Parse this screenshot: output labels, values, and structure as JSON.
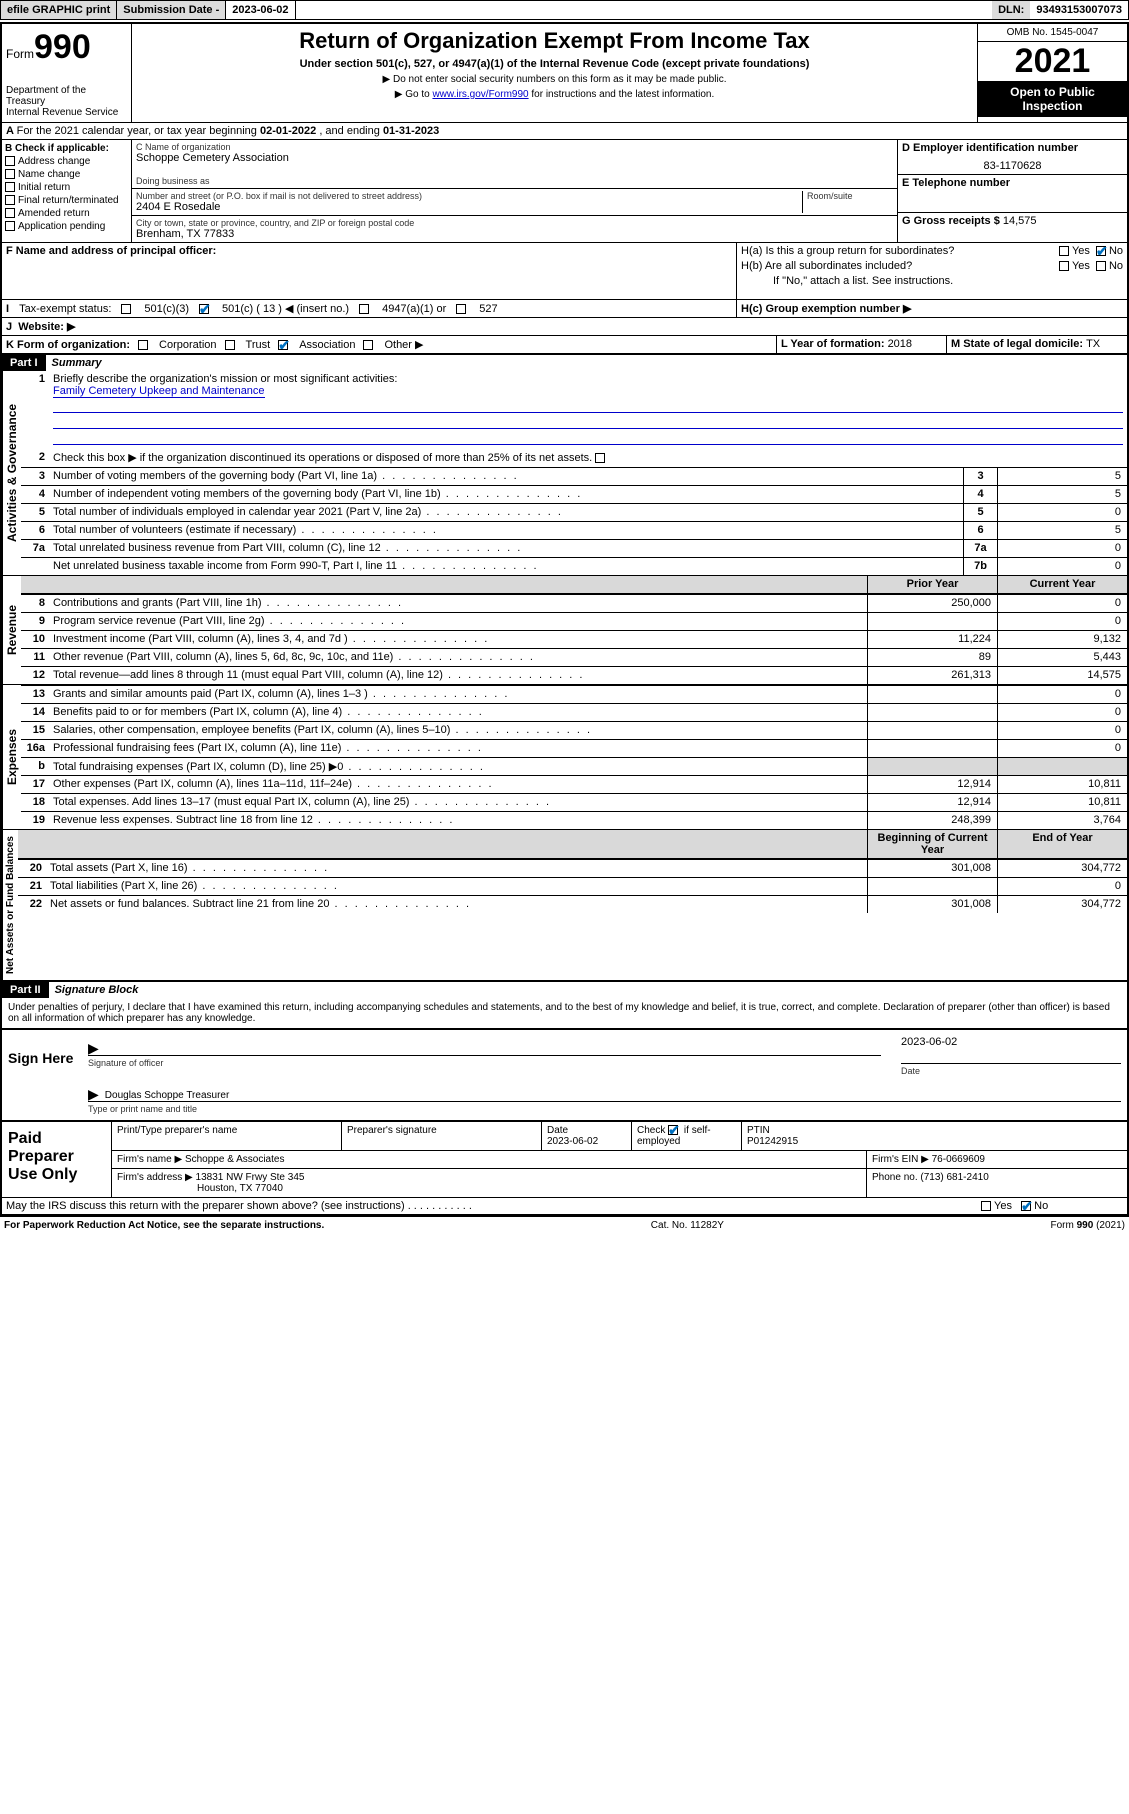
{
  "topbar": {
    "efile": "efile GRAPHIC print",
    "subdate_label": "Submission Date - ",
    "subdate": "2023-06-02",
    "dln_label": "DLN: ",
    "dln": "93493153007073"
  },
  "header": {
    "form_label": "Form",
    "form_num": "990",
    "dept": "Department of the Treasury",
    "irs": "Internal Revenue Service",
    "title": "Return of Organization Exempt From Income Tax",
    "subtitle": "Under section 501(c), 527, or 4947(a)(1) of the Internal Revenue Code (except private foundations)",
    "note1": "Do not enter social security numbers on this form as it may be made public.",
    "note2_pre": "Go to ",
    "note2_link": "www.irs.gov/Form990",
    "note2_post": " for instructions and the latest information.",
    "omb": "OMB No. 1545-0047",
    "year": "2021",
    "open": "Open to Public Inspection"
  },
  "A": {
    "text": "For the 2021 calendar year, or tax year beginning ",
    "begin": "02-01-2022",
    "mid": " , and ending ",
    "end": "01-31-2023"
  },
  "B": {
    "label": "B Check if applicable:",
    "items": [
      "Address change",
      "Name change",
      "Initial return",
      "Final return/terminated",
      "Amended return",
      "Application pending"
    ]
  },
  "C": {
    "name_label": "C Name of organization",
    "name": "Schoppe Cemetery Association",
    "dba_label": "Doing business as",
    "addr_label": "Number and street (or P.O. box if mail is not delivered to street address)",
    "room_label": "Room/suite",
    "addr": "2404 E Rosedale",
    "city_label": "City or town, state or province, country, and ZIP or foreign postal code",
    "city": "Brenham, TX  77833"
  },
  "D": {
    "label": "D Employer identification number",
    "val": "83-1170628"
  },
  "E": {
    "label": "E Telephone number"
  },
  "G": {
    "label": "G Gross receipts $ ",
    "val": "14,575"
  },
  "F": {
    "label": "F  Name and address of principal officer:"
  },
  "H": {
    "a": "H(a)  Is this a group return for subordinates?",
    "b": "H(b)  Are all subordinates included?",
    "b_note": "If \"No,\" attach a list. See instructions.",
    "c": "H(c)  Group exemption number ▶",
    "yes": "Yes",
    "no": "No"
  },
  "I": {
    "label": "Tax-exempt status:",
    "opts": [
      "501(c)(3)",
      "501(c) ( 13 ) ◀ (insert no.)",
      "4947(a)(1) or",
      "527"
    ]
  },
  "J": {
    "label": "Website: ▶"
  },
  "K": {
    "label": "K Form of organization:",
    "opts": [
      "Corporation",
      "Trust",
      "Association",
      "Other ▶"
    ]
  },
  "L": {
    "label": "L Year of formation: ",
    "val": "2018"
  },
  "M": {
    "label": "M State of legal domicile: ",
    "val": "TX"
  },
  "part1": {
    "hdr": "Part I",
    "title": "Summary",
    "q1": "Briefly describe the organization's mission or most significant activities:",
    "mission": "Family Cemetery Upkeep and Maintenance",
    "q2": "Check this box ▶        if the organization discontinued its operations or disposed of more than 25% of its net assets.",
    "rot_gov": "Activities & Governance",
    "rot_rev": "Revenue",
    "rot_exp": "Expenses",
    "rot_net": "Net Assets or Fund Balances",
    "col_prior": "Prior Year",
    "col_curr": "Current Year",
    "col_begin": "Beginning of Current Year",
    "col_end": "End of Year",
    "lines_gov": [
      {
        "n": "3",
        "d": "Number of voting members of the governing body (Part VI, line 1a)",
        "box": "3",
        "v": "5"
      },
      {
        "n": "4",
        "d": "Number of independent voting members of the governing body (Part VI, line 1b)",
        "box": "4",
        "v": "5"
      },
      {
        "n": "5",
        "d": "Total number of individuals employed in calendar year 2021 (Part V, line 2a)",
        "box": "5",
        "v": "0"
      },
      {
        "n": "6",
        "d": "Total number of volunteers (estimate if necessary)",
        "box": "6",
        "v": "5"
      },
      {
        "n": "7a",
        "d": "Total unrelated business revenue from Part VIII, column (C), line 12",
        "box": "7a",
        "v": "0"
      },
      {
        "n": "",
        "d": "Net unrelated business taxable income from Form 990-T, Part I, line 11",
        "box": "7b",
        "v": "0"
      }
    ],
    "lines_rev": [
      {
        "n": "8",
        "d": "Contributions and grants (Part VIII, line 1h)",
        "p": "250,000",
        "c": "0"
      },
      {
        "n": "9",
        "d": "Program service revenue (Part VIII, line 2g)",
        "p": "",
        "c": "0"
      },
      {
        "n": "10",
        "d": "Investment income (Part VIII, column (A), lines 3, 4, and 7d )",
        "p": "11,224",
        "c": "9,132"
      },
      {
        "n": "11",
        "d": "Other revenue (Part VIII, column (A), lines 5, 6d, 8c, 9c, 10c, and 11e)",
        "p": "89",
        "c": "5,443"
      },
      {
        "n": "12",
        "d": "Total revenue—add lines 8 through 11 (must equal Part VIII, column (A), line 12)",
        "p": "261,313",
        "c": "14,575"
      }
    ],
    "lines_exp": [
      {
        "n": "13",
        "d": "Grants and similar amounts paid (Part IX, column (A), lines 1–3 )",
        "p": "",
        "c": "0"
      },
      {
        "n": "14",
        "d": "Benefits paid to or for members (Part IX, column (A), line 4)",
        "p": "",
        "c": "0"
      },
      {
        "n": "15",
        "d": "Salaries, other compensation, employee benefits (Part IX, column (A), lines 5–10)",
        "p": "",
        "c": "0"
      },
      {
        "n": "16a",
        "d": "Professional fundraising fees (Part IX, column (A), line 11e)",
        "p": "",
        "c": "0"
      },
      {
        "n": "b",
        "d": "Total fundraising expenses (Part IX, column (D), line 25) ▶0",
        "p": "grey",
        "c": "grey"
      },
      {
        "n": "17",
        "d": "Other expenses (Part IX, column (A), lines 11a–11d, 11f–24e)",
        "p": "12,914",
        "c": "10,811"
      },
      {
        "n": "18",
        "d": "Total expenses. Add lines 13–17 (must equal Part IX, column (A), line 25)",
        "p": "12,914",
        "c": "10,811"
      },
      {
        "n": "19",
        "d": "Revenue less expenses. Subtract line 18 from line 12",
        "p": "248,399",
        "c": "3,764"
      }
    ],
    "lines_net": [
      {
        "n": "20",
        "d": "Total assets (Part X, line 16)",
        "p": "301,008",
        "c": "304,772"
      },
      {
        "n": "21",
        "d": "Total liabilities (Part X, line 26)",
        "p": "",
        "c": "0"
      },
      {
        "n": "22",
        "d": "Net assets or fund balances. Subtract line 21 from line 20",
        "p": "301,008",
        "c": "304,772"
      }
    ]
  },
  "part2": {
    "hdr": "Part II",
    "title": "Signature Block",
    "decl": "Under penalties of perjury, I declare that I have examined this return, including accompanying schedules and statements, and to the best of my knowledge and belief, it is true, correct, and complete. Declaration of preparer (other than officer) is based on all information of which preparer has any knowledge."
  },
  "sign": {
    "label": "Sign Here",
    "sig_officer": "Signature of officer",
    "date_label": "Date",
    "date": "2023-06-02",
    "name": "Douglas Schoppe Treasurer",
    "name_label": "Type or print name and title"
  },
  "paid": {
    "label": "Paid Preparer Use Only",
    "h1": "Print/Type preparer's name",
    "h2": "Preparer's signature",
    "h3": "Date",
    "date": "2023-06-02",
    "h4_pre": "Check",
    "h4_post": "if self-employed",
    "h5": "PTIN",
    "ptin": "P01242915",
    "firm_name_label": "Firm's name   ▶ ",
    "firm_name": "Schoppe & Associates",
    "firm_ein_label": "Firm's EIN ▶ ",
    "firm_ein": "76-0669609",
    "firm_addr_label": "Firm's address ▶ ",
    "firm_addr": "13831 NW Frwy Ste 345",
    "firm_city": "Houston, TX  77040",
    "phone_label": "Phone no. ",
    "phone": "(713) 681-2410",
    "discuss": "May the IRS discuss this return with the preparer shown above? (see instructions)"
  },
  "footer": {
    "left": "For Paperwork Reduction Act Notice, see the separate instructions.",
    "mid": "Cat. No. 11282Y",
    "right": "Form 990 (2021)"
  }
}
